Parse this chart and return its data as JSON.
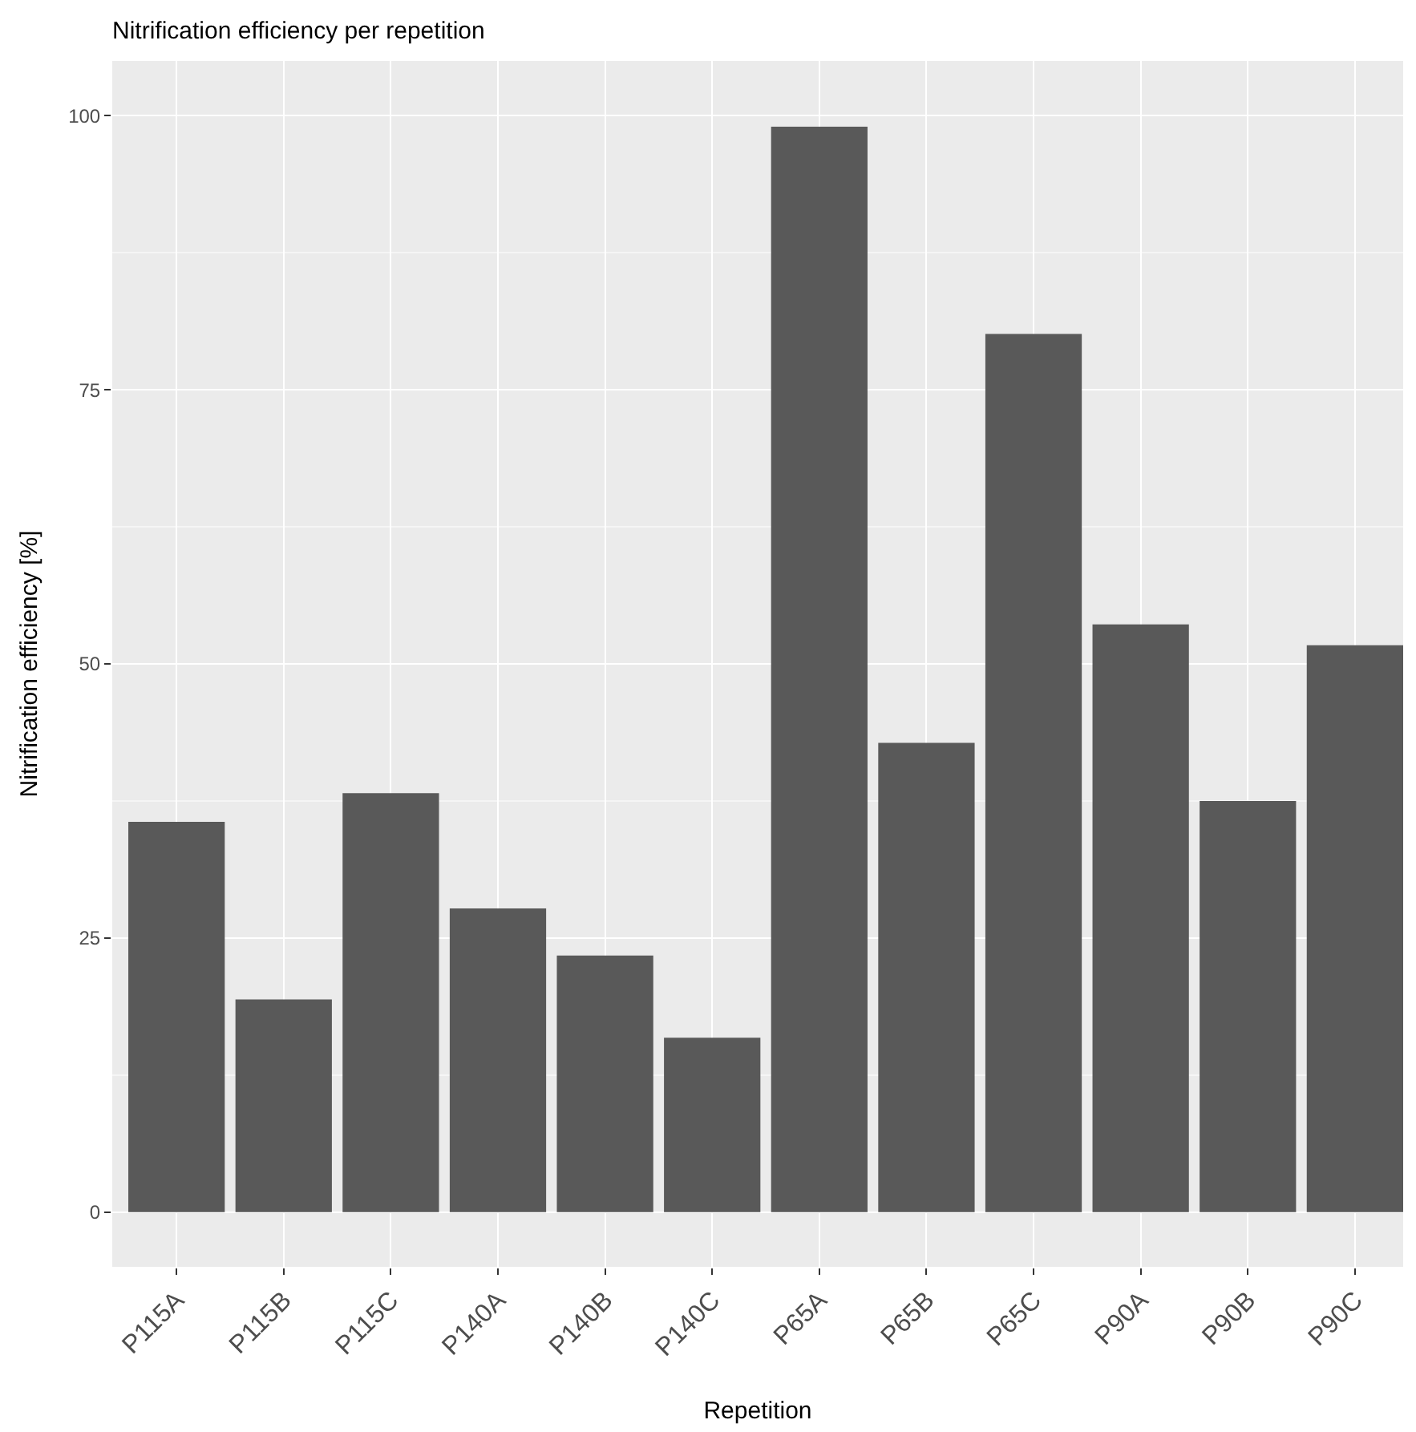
{
  "chart_data": {
    "type": "bar",
    "title": "Nitrification efficiency per repetition",
    "xlabel": "Repetition",
    "ylabel": "Nitrification efficiency [%]",
    "categories": [
      "P115A",
      "P115B",
      "P115C",
      "P140A",
      "P140B",
      "P140C",
      "P65A",
      "P65B",
      "P65C",
      "P90A",
      "P90B",
      "P90C"
    ],
    "values": [
      35.6,
      19.4,
      38.2,
      27.7,
      23.4,
      15.9,
      99.0,
      42.8,
      80.1,
      53.6,
      37.5,
      51.7
    ],
    "color": "#595959",
    "ylim": [
      -5,
      105
    ],
    "yticks": [
      0,
      25,
      50,
      75,
      100
    ],
    "grid": true
  }
}
